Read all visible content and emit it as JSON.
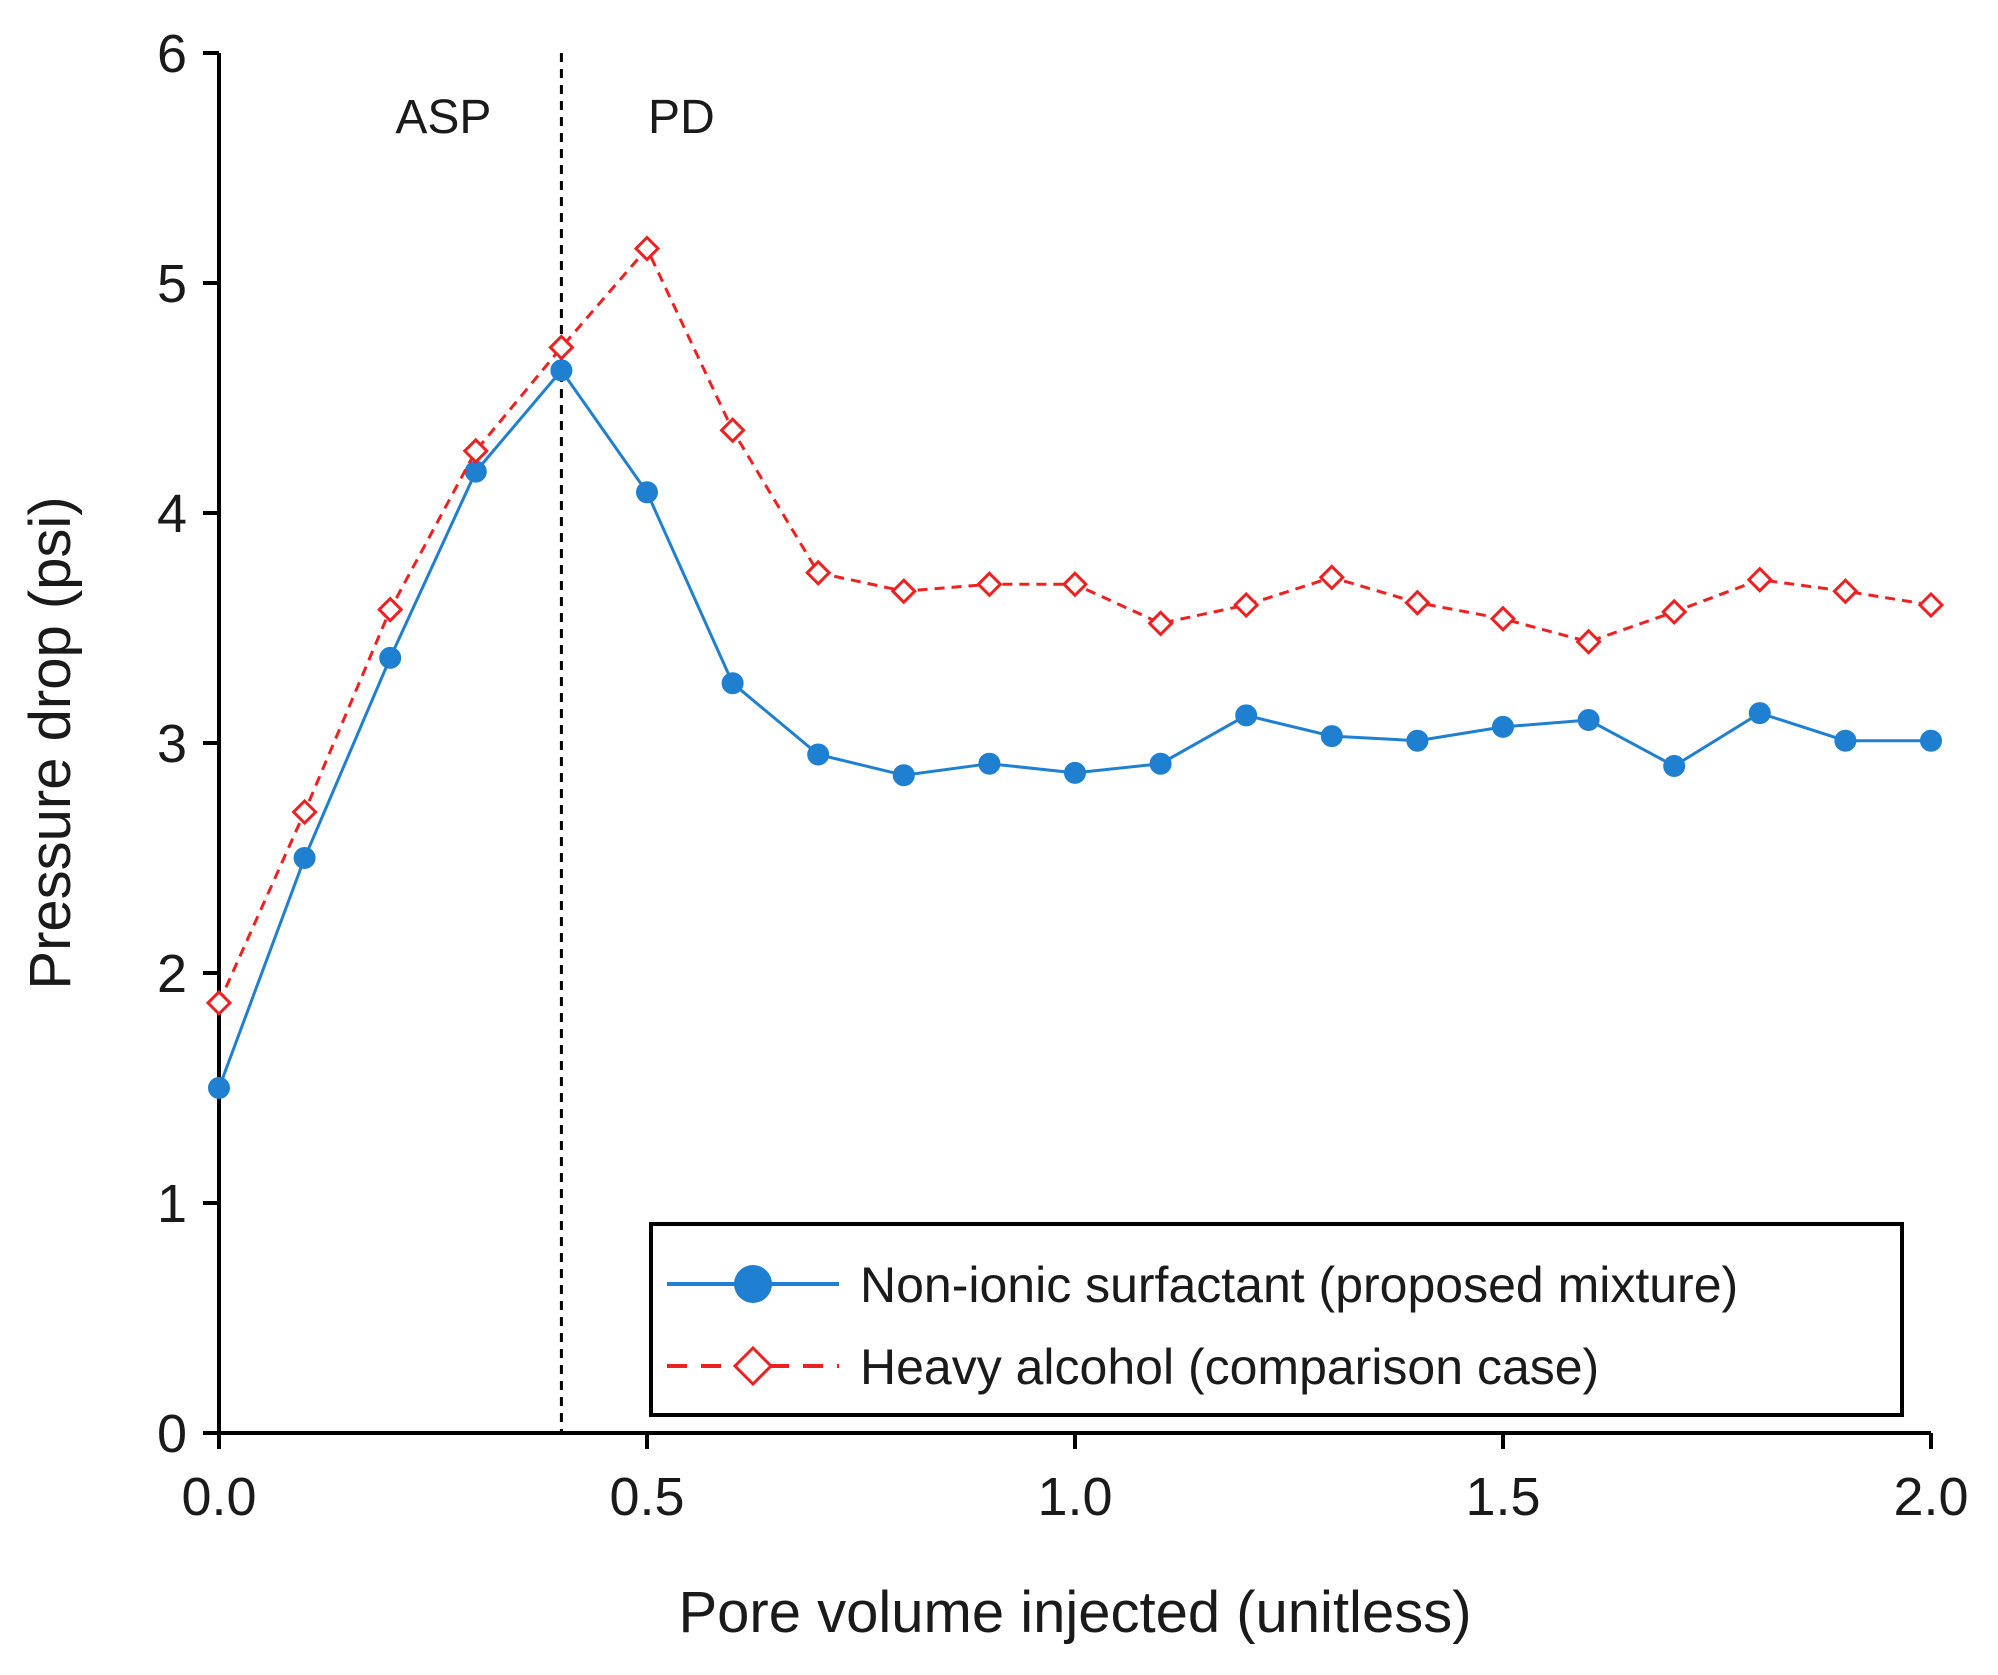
{
  "chart_data": {
    "type": "line",
    "title": "",
    "xlabel": "Pore volume injected (unitless)",
    "ylabel": "Pressure drop (psi)",
    "xlim": [
      0.0,
      2.0
    ],
    "ylim": [
      0,
      6
    ],
    "grid": false,
    "legend_position": "bottom-right",
    "x_tick_labels": [
      "0.0",
      "0.5",
      "1.0",
      "1.5",
      "2.0"
    ],
    "x_ticks": [
      0.0,
      0.5,
      1.0,
      1.5,
      2.0
    ],
    "y_tick_labels": [
      "0",
      "1",
      "2",
      "3",
      "4",
      "5",
      "6"
    ],
    "y_ticks": [
      0,
      1,
      2,
      3,
      4,
      5,
      6
    ],
    "divider": {
      "x": 0.4,
      "left_label": "ASP",
      "right_label": "PD"
    },
    "x": [
      0.0,
      0.1,
      0.2,
      0.3,
      0.4,
      0.5,
      0.6,
      0.7,
      0.8,
      0.9,
      1.0,
      1.1,
      1.2,
      1.3,
      1.4,
      1.5,
      1.6,
      1.7,
      1.8,
      1.9,
      2.0
    ],
    "series": [
      {
        "name": "Non-ionic surfactant (proposed mixture)",
        "color": "#1f7fd0",
        "marker": "filled-circle",
        "line_style": "solid",
        "values": [
          1.5,
          2.5,
          3.37,
          4.18,
          4.62,
          4.09,
          3.26,
          2.95,
          2.86,
          2.91,
          2.87,
          2.91,
          3.12,
          3.03,
          3.01,
          3.07,
          3.1,
          2.9,
          3.13,
          3.01,
          3.01
        ]
      },
      {
        "name": "Heavy alcohol (comparison case)",
        "color": "#ee2020",
        "marker": "open-diamond",
        "line_style": "dashed",
        "values": [
          1.87,
          2.7,
          3.58,
          4.27,
          4.72,
          5.15,
          4.36,
          3.74,
          3.66,
          3.69,
          3.69,
          3.52,
          3.6,
          3.72,
          3.61,
          3.54,
          3.44,
          3.57,
          3.71,
          3.66,
          3.6
        ]
      }
    ]
  }
}
